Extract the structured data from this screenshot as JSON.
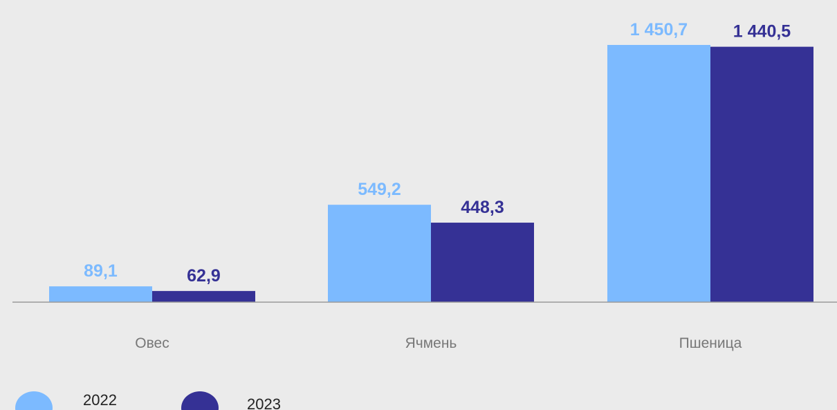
{
  "chart_data": {
    "type": "bar",
    "categories": [
      "Овес",
      "Ячмень",
      "Пшеница"
    ],
    "series": [
      {
        "name": "2022",
        "values": [
          89.1,
          549.2,
          1450.7
        ],
        "labels": [
          "89,1",
          "549,2",
          "1 450,7"
        ],
        "color": "#7cbaff"
      },
      {
        "name": "2023",
        "values": [
          62.9,
          448.3,
          1440.5
        ],
        "labels": [
          "62,9",
          "448,3",
          "1 440,5"
        ],
        "color": "#353195"
      }
    ],
    "ylim": [
      0,
      1450.7
    ],
    "grid": false,
    "legend_position": "bottom-left",
    "title": "",
    "xlabel": "",
    "ylabel": ""
  },
  "colors": {
    "background": "#ebebeb",
    "axis": "#9a9a9a",
    "category_text": "#777777"
  }
}
